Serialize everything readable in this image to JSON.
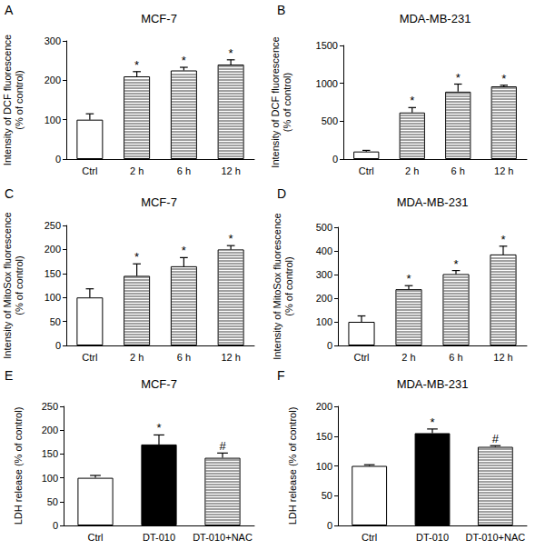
{
  "chart_data": [
    {
      "type": "bar",
      "panel": "A",
      "title": "MCF-7",
      "ylabel": "Intensity of DCF fluorescence\n(% of control)",
      "categories": [
        "Ctrl",
        "2 h",
        "6 h",
        "12 h"
      ],
      "values": [
        100,
        210,
        225,
        240
      ],
      "errors": [
        15,
        12,
        8,
        12
      ],
      "colors": [
        "#ffffff",
        "#404040",
        "#404040",
        "#404040"
      ],
      "annotations": [
        null,
        "*",
        "*",
        "*"
      ],
      "ylim": [
        0,
        300
      ],
      "yticks": [
        0,
        100,
        200,
        300
      ],
      "grid": false
    },
    {
      "type": "bar",
      "panel": "B",
      "title": "MDA-MB-231",
      "ylabel": "Intensity of DCF fluorescence\n(% of control)",
      "categories": [
        "Ctrl",
        "2 h",
        "6 h",
        "12 h"
      ],
      "values": [
        100,
        615,
        890,
        960
      ],
      "errors": [
        15,
        65,
        100,
        15
      ],
      "colors": [
        "#ffffff",
        "#404040",
        "#404040",
        "#404040"
      ],
      "annotations": [
        null,
        "*",
        "*",
        "*"
      ],
      "ylim": [
        0,
        1500
      ],
      "yticks": [
        0,
        500,
        1000,
        1500
      ],
      "grid": false
    },
    {
      "type": "bar",
      "panel": "C",
      "title": "MCF-7",
      "ylabel": "Intensity of MitoSox fluorescence\n(% of control)",
      "categories": [
        "Ctrl",
        "2 h",
        "6 h",
        "12 h"
      ],
      "values": [
        100,
        145,
        165,
        200
      ],
      "errors": [
        18,
        25,
        18,
        8
      ],
      "colors": [
        "#ffffff",
        "#404040",
        "#404040",
        "#404040"
      ],
      "annotations": [
        null,
        "*",
        "*",
        "*"
      ],
      "ylim": [
        0,
        250
      ],
      "yticks": [
        0,
        50,
        100,
        150,
        200,
        250
      ],
      "grid": false
    },
    {
      "type": "bar",
      "panel": "D",
      "title": "MDA-MB-231",
      "ylabel": "Intensity of MitoSox fluorescence\n(% of control)",
      "categories": [
        "Ctrl",
        "2 h",
        "6 h",
        "12 h"
      ],
      "values": [
        100,
        238,
        302,
        385
      ],
      "errors": [
        25,
        15,
        15,
        35
      ],
      "colors": [
        "#ffffff",
        "#404040",
        "#404040",
        "#404040"
      ],
      "annotations": [
        null,
        "*",
        "*",
        "*"
      ],
      "ylim": [
        0,
        500
      ],
      "yticks": [
        0,
        100,
        200,
        300,
        400,
        500
      ],
      "grid": false
    },
    {
      "type": "bar",
      "panel": "E",
      "title": "MCF-7",
      "ylabel": "LDH release (% of control)",
      "categories": [
        "Ctrl",
        "DT-010",
        "DT-010+NAC"
      ],
      "values": [
        100,
        170,
        142
      ],
      "errors": [
        5,
        20,
        10
      ],
      "colors": [
        "#ffffff",
        "#000000",
        "#404040"
      ],
      "annotations": [
        null,
        "*",
        "#"
      ],
      "ylim": [
        0,
        250
      ],
      "yticks": [
        0,
        50,
        100,
        150,
        200,
        250
      ],
      "grid": false
    },
    {
      "type": "bar",
      "panel": "F",
      "title": "MDA-MB-231",
      "ylabel": "LDH release (% of control)",
      "categories": [
        "Ctrl",
        "DT-010",
        "DT-010+NAC"
      ],
      "values": [
        100,
        155,
        132
      ],
      "errors": [
        2,
        7,
        2
      ],
      "colors": [
        "#ffffff",
        "#000000",
        "#404040"
      ],
      "annotations": [
        null,
        "*",
        "#"
      ],
      "ylim": [
        0,
        200
      ],
      "yticks": [
        0,
        50,
        100,
        150,
        200
      ],
      "grid": false
    }
  ]
}
